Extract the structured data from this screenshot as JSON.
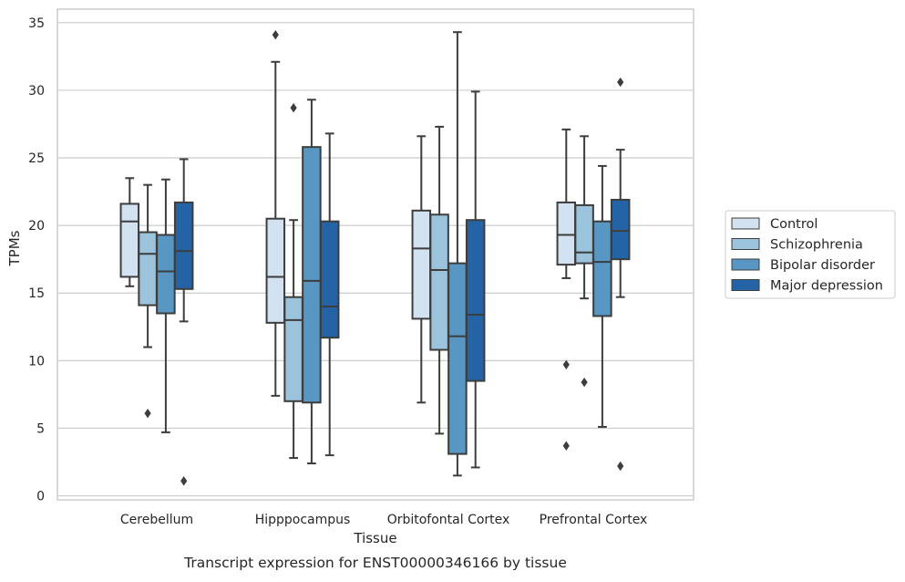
{
  "chart_data": {
    "type": "box",
    "title": "",
    "caption": "Transcript expression for ENST00000346166 by tissue",
    "xlabel": "Tissue",
    "ylabel": "TPMs",
    "ylim": [
      -0.3,
      36
    ],
    "yticks": [
      0,
      5,
      10,
      15,
      20,
      25,
      30,
      35
    ],
    "grid": "horizontal",
    "legend_position": "right",
    "categories": [
      "Cerebellum",
      "Hipppocampus",
      "Orbitofontal Cortex",
      "Prefrontal Cortex"
    ],
    "series": [
      {
        "name": "Control",
        "color": "#d2e2f0",
        "boxes": [
          {
            "whislo": 15.5,
            "q1": 16.2,
            "med": 20.3,
            "q3": 21.6,
            "whishi": 23.5,
            "fliers": []
          },
          {
            "whislo": 7.4,
            "q1": 12.8,
            "med": 16.2,
            "q3": 20.5,
            "whishi": 32.1,
            "fliers": [
              34.1
            ]
          },
          {
            "whislo": 6.9,
            "q1": 13.1,
            "med": 18.3,
            "q3": 21.1,
            "whishi": 26.6,
            "fliers": []
          },
          {
            "whislo": 16.1,
            "q1": 17.1,
            "med": 19.3,
            "q3": 21.7,
            "whishi": 27.1,
            "fliers": [
              9.7,
              3.7
            ]
          }
        ]
      },
      {
        "name": "Schizophrenia",
        "color": "#9cc3dc",
        "boxes": [
          {
            "whislo": 11.0,
            "q1": 14.1,
            "med": 17.9,
            "q3": 19.5,
            "whishi": 23.0,
            "fliers": [
              6.1
            ]
          },
          {
            "whislo": 2.8,
            "q1": 7.0,
            "med": 13.0,
            "q3": 14.7,
            "whishi": 20.4,
            "fliers": [
              28.7
            ]
          },
          {
            "whislo": 4.6,
            "q1": 10.8,
            "med": 16.7,
            "q3": 20.8,
            "whishi": 27.3,
            "fliers": []
          },
          {
            "whislo": 14.6,
            "q1": 17.2,
            "med": 18.0,
            "q3": 21.5,
            "whishi": 26.6,
            "fliers": [
              8.4
            ]
          }
        ]
      },
      {
        "name": "Bipolar disorder",
        "color": "#5897c4",
        "boxes": [
          {
            "whislo": 4.7,
            "q1": 13.5,
            "med": 16.6,
            "q3": 19.3,
            "whishi": 23.4,
            "fliers": []
          },
          {
            "whislo": 2.4,
            "q1": 6.9,
            "med": 15.9,
            "q3": 25.8,
            "whishi": 29.3,
            "fliers": []
          },
          {
            "whislo": 1.5,
            "q1": 3.1,
            "med": 11.8,
            "q3": 17.2,
            "whishi": 34.3,
            "fliers": []
          },
          {
            "whislo": 5.1,
            "q1": 13.3,
            "med": 17.3,
            "q3": 20.3,
            "whishi": 24.4,
            "fliers": []
          }
        ]
      },
      {
        "name": "Major depression",
        "color": "#2464a6",
        "boxes": [
          {
            "whislo": 12.9,
            "q1": 15.3,
            "med": 18.1,
            "q3": 21.7,
            "whishi": 24.9,
            "fliers": [
              1.1
            ]
          },
          {
            "whislo": 3.0,
            "q1": 11.7,
            "med": 14.0,
            "q3": 20.3,
            "whishi": 26.8,
            "fliers": []
          },
          {
            "whislo": 2.1,
            "q1": 8.5,
            "med": 13.4,
            "q3": 20.4,
            "whishi": 29.9,
            "fliers": []
          },
          {
            "whislo": 14.7,
            "q1": 17.5,
            "med": 19.6,
            "q3": 21.9,
            "whishi": 25.6,
            "fliers": [
              30.6,
              2.2
            ]
          }
        ]
      }
    ]
  },
  "style": {
    "line_color": "#3d3d3d",
    "grid_color": "#cccccc",
    "frame_color": "#cccccc"
  }
}
